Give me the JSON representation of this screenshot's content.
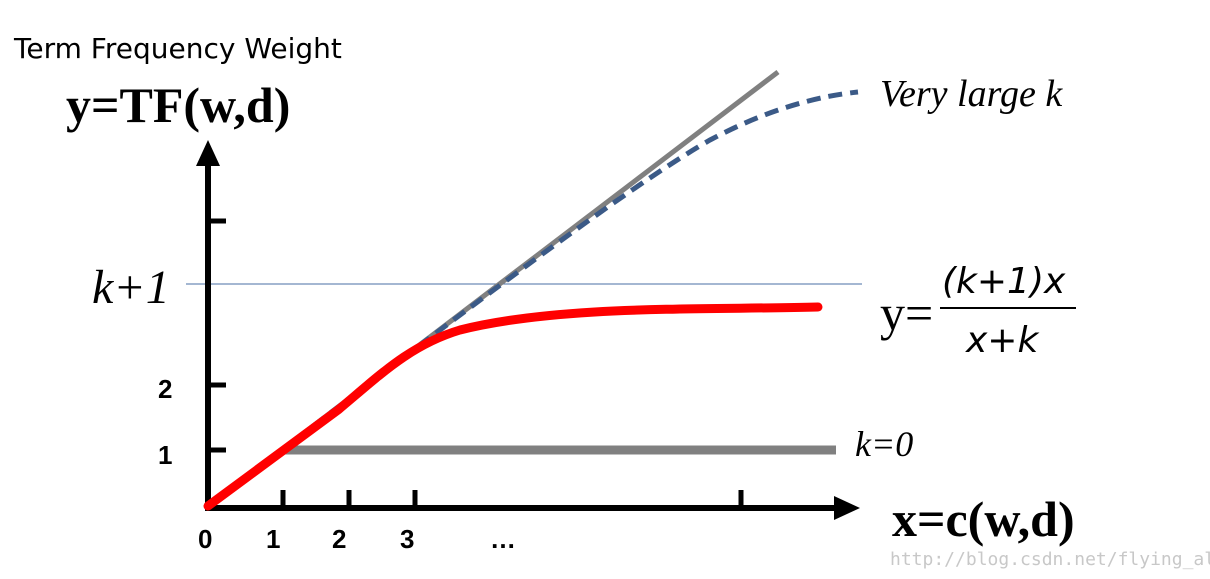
{
  "title": "Term Frequency Weight",
  "y_axis_label": "y=TF(w,d)",
  "x_axis_label": "x=c(w,d)",
  "y_ticks": {
    "k_plus_1": "k+1",
    "two": "2",
    "one": "1"
  },
  "x_ticks": {
    "zero": "0",
    "one": "1",
    "two": "2",
    "three": "3",
    "ellipsis": "…"
  },
  "annotations": {
    "very_large_k": "Very large k",
    "k_zero": "k=0",
    "formula_lhs": "y=",
    "formula_numerator": "(k+1)x",
    "formula_denominator": "x+k"
  },
  "watermark": "http://blog.csdn.net/flying_all",
  "colors": {
    "axis": "#000000",
    "identity_line": "#808080",
    "k0_line": "#808080",
    "bm25_curve": "#ff0000",
    "large_k_curve": "#3b5a87",
    "reference_line": "#4a6fa5",
    "watermark": "#c8c8c8"
  }
}
